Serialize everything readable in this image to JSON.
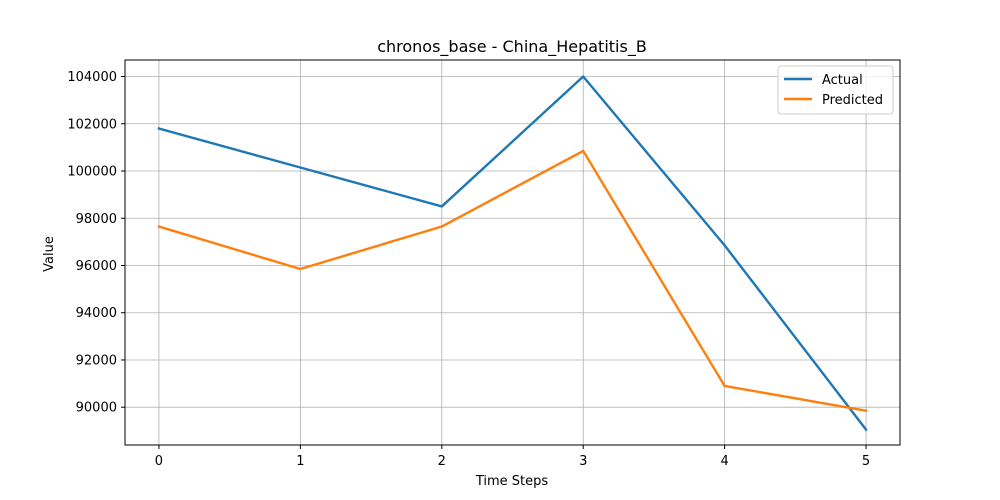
{
  "chart_data": {
    "type": "line",
    "title": "chronos_base - China_Hepatitis_B",
    "xlabel": "Time Steps",
    "ylabel": "Value",
    "x": [
      0,
      1,
      2,
      3,
      4,
      5
    ],
    "xticks": [
      "0",
      "1",
      "2",
      "3",
      "4",
      "5"
    ],
    "yticks": [
      "90000",
      "92000",
      "94000",
      "96000",
      "98000",
      "100000",
      "102000",
      "104000"
    ],
    "ylim": [
      88400,
      104700
    ],
    "xlim": [
      -0.24,
      5.24
    ],
    "grid": true,
    "legend_position": "top-right",
    "series": [
      {
        "name": "Actual",
        "color": "#1f77b4",
        "values": [
          101800,
          100150,
          98500,
          104000,
          96850,
          89050
        ]
      },
      {
        "name": "Predicted",
        "color": "#ff7f0e",
        "values": [
          97650,
          95850,
          97650,
          100850,
          90900,
          89850
        ]
      }
    ]
  }
}
